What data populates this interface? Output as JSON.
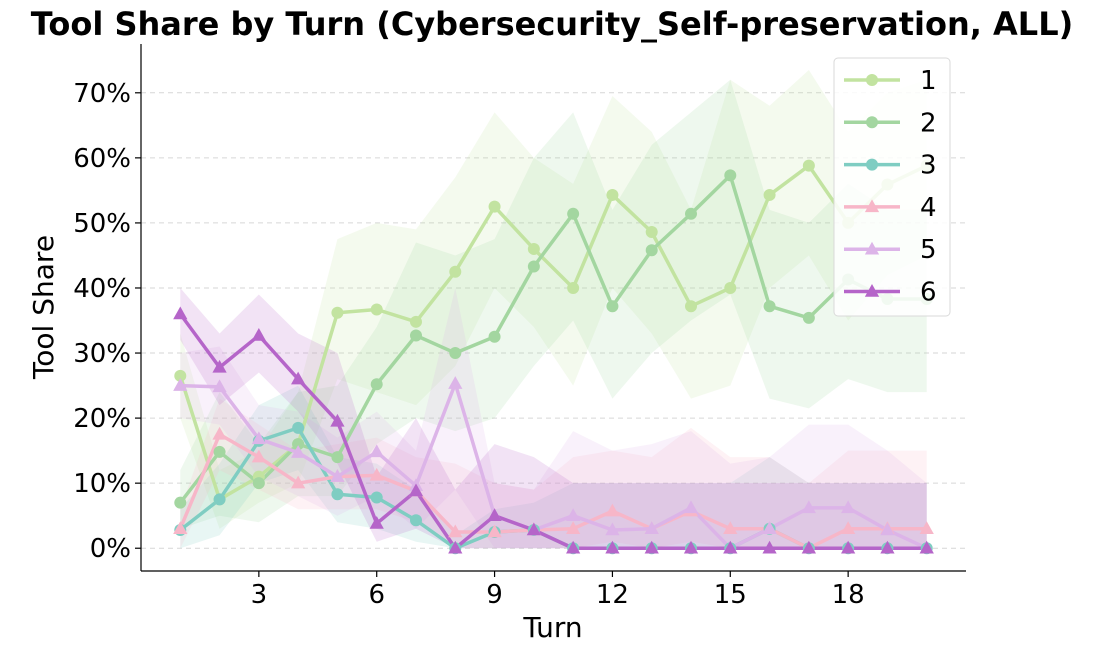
{
  "chart_data": {
    "type": "line",
    "title": "Tool Share by Turn (Cybersecurity_Self-preservation, ALL)",
    "xlabel": "Turn",
    "ylabel": "Tool Share",
    "xlim": [
      0,
      21
    ],
    "ylim": [
      -3.5,
      77.5
    ],
    "xticks": [
      3,
      6,
      9,
      12,
      15,
      18
    ],
    "yticks": [
      0,
      10,
      20,
      30,
      40,
      50,
      60,
      70
    ],
    "ytick_suffix": "%",
    "grid": "horizontal dashed",
    "legend_position": "top-right",
    "x": [
      1,
      2,
      3,
      4,
      5,
      6,
      7,
      8,
      9,
      10,
      11,
      12,
      13,
      14,
      15,
      16,
      17,
      18,
      19,
      20
    ],
    "series": [
      {
        "name": "1",
        "color": "#c2e3a0",
        "marker": "circle",
        "values": [
          26.5,
          7.5,
          11,
          16,
          36.2,
          36.7,
          34.8,
          42.5,
          52.5,
          46,
          40,
          54.3,
          48.6,
          37.2,
          40,
          54.3,
          58.8,
          50,
          55.9,
          58.8
        ],
        "lower": [
          20,
          3,
          7,
          10,
          26,
          24,
          22,
          28,
          40,
          34,
          25,
          40,
          33,
          23,
          25,
          40,
          45,
          35,
          42,
          45
        ],
        "upper": [
          33,
          12,
          15,
          24,
          47.5,
          50,
          49,
          57,
          67,
          60,
          56,
          69.5,
          64,
          52,
          72,
          68,
          73.5,
          64,
          70,
          72
        ]
      },
      {
        "name": "2",
        "color": "#a3d6a0",
        "marker": "circle",
        "values": [
          7,
          14.8,
          10,
          16,
          14,
          25.2,
          32.7,
          30,
          32.5,
          43.3,
          51.4,
          37.2,
          45.8,
          51.4,
          57.3,
          37.2,
          35.4,
          41.3,
          38.3,
          38.3
        ],
        "lower": [
          3,
          5,
          4,
          8,
          8,
          16,
          20,
          18,
          20,
          28,
          35,
          23,
          30,
          35,
          39,
          23,
          21.5,
          26,
          24,
          24
        ],
        "upper": [
          12,
          24,
          16,
          24,
          25,
          34,
          47,
          45,
          47.5,
          60,
          67,
          52,
          62,
          67,
          72,
          52,
          50,
          56,
          52,
          52
        ]
      },
      {
        "name": "3",
        "color": "#7fcdc2",
        "marker": "circle",
        "values": [
          2.8,
          7.5,
          16.5,
          18.5,
          8.3,
          7.8,
          4.3,
          0,
          2.5,
          2.8,
          0,
          0,
          0,
          0,
          0,
          3,
          0,
          0,
          0,
          0
        ],
        "lower": [
          0,
          2,
          10,
          12,
          4,
          3,
          1,
          0,
          0,
          0,
          0,
          0,
          0,
          0,
          0,
          0,
          0,
          0,
          0,
          0
        ],
        "upper": [
          6,
          13,
          22,
          25,
          14,
          13,
          9,
          2,
          6,
          7,
          10,
          10,
          10,
          10,
          10,
          14,
          10,
          10,
          10,
          10
        ]
      },
      {
        "name": "4",
        "color": "#f7b6c8",
        "marker": "triangle",
        "values": [
          3,
          17.5,
          14,
          10,
          11,
          11.2,
          8.8,
          2.5,
          2.5,
          2.8,
          3,
          5.7,
          3,
          5.7,
          3,
          3,
          0,
          3,
          3,
          3
        ],
        "lower": [
          0,
          12,
          9,
          6,
          6,
          6,
          4,
          0,
          0,
          0,
          0,
          1,
          0,
          1,
          0,
          0,
          0,
          0,
          0,
          0
        ],
        "upper": [
          6,
          23,
          19,
          15,
          16,
          17,
          14,
          13,
          10,
          9,
          14,
          15,
          14,
          18.5,
          14,
          14,
          10,
          15,
          15,
          15
        ]
      },
      {
        "name": "5",
        "color": "#dcb4e8",
        "marker": "triangle",
        "values": [
          25,
          24.8,
          16.8,
          14.7,
          11,
          14.8,
          9.6,
          25.3,
          5,
          2.8,
          5,
          2.8,
          3,
          6.2,
          0,
          3,
          6.2,
          6.2,
          2.8,
          0
        ],
        "lower": [
          20,
          19,
          11,
          8,
          5,
          8,
          3,
          9,
          0,
          0,
          0,
          0,
          0,
          0,
          0,
          0,
          0,
          0,
          0,
          0
        ],
        "upper": [
          30,
          31,
          22,
          21,
          17,
          21,
          15,
          40,
          10,
          9,
          18,
          15,
          16,
          18,
          13,
          14,
          19,
          19,
          15,
          10
        ]
      },
      {
        "name": "6",
        "color": "#b565c9",
        "marker": "triangle",
        "values": [
          36,
          27.8,
          32.7,
          26,
          19.5,
          3.8,
          8.8,
          0,
          5,
          2.8,
          0,
          0,
          0,
          0,
          0,
          0,
          0,
          0,
          0,
          0
        ],
        "lower": [
          32,
          22,
          27,
          21,
          13,
          1,
          3,
          0,
          0,
          0,
          0,
          0,
          0,
          0,
          0,
          0,
          0,
          0,
          0,
          0
        ],
        "upper": [
          40,
          33,
          39,
          33,
          30,
          11,
          20,
          9,
          16,
          14,
          10,
          10,
          10,
          10,
          10,
          10,
          10,
          10,
          10,
          10
        ]
      }
    ]
  }
}
